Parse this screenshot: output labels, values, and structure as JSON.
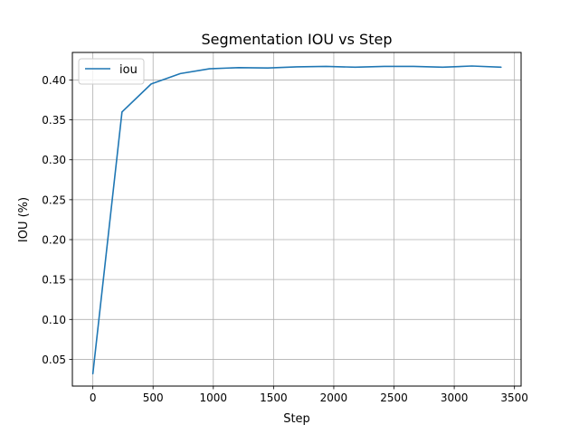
{
  "chart_data": {
    "type": "line",
    "title": "Segmentation IOU vs Step",
    "xlabel": "Step",
    "ylabel": "IOU (%)",
    "xlim": [
      -170,
      3555
    ],
    "ylim": [
      0.0165,
      0.4345
    ],
    "xticks": [
      0,
      500,
      1000,
      1500,
      2000,
      2500,
      3000,
      3500
    ],
    "yticks": [
      0.05,
      0.1,
      0.15,
      0.2,
      0.25,
      0.3,
      0.35,
      0.4
    ],
    "xtick_labels": [
      "0",
      "500",
      "1000",
      "1500",
      "2000",
      "2500",
      "3000",
      "3500"
    ],
    "ytick_labels": [
      "0.05",
      "0.10",
      "0.15",
      "0.20",
      "0.25",
      "0.30",
      "0.35",
      "0.40"
    ],
    "grid": true,
    "legend": {
      "position": "top-left",
      "entries": [
        "iou"
      ]
    },
    "series": [
      {
        "name": "iou",
        "color": "#1f77b4",
        "x": [
          0,
          242,
          484,
          726,
          968,
          1210,
          1452,
          1694,
          1936,
          2178,
          2420,
          2662,
          2904,
          3146,
          3388
        ],
        "y": [
          0.032,
          0.36,
          0.395,
          0.408,
          0.414,
          0.4155,
          0.415,
          0.4165,
          0.417,
          0.416,
          0.417,
          0.417,
          0.416,
          0.4175,
          0.416
        ]
      }
    ]
  }
}
